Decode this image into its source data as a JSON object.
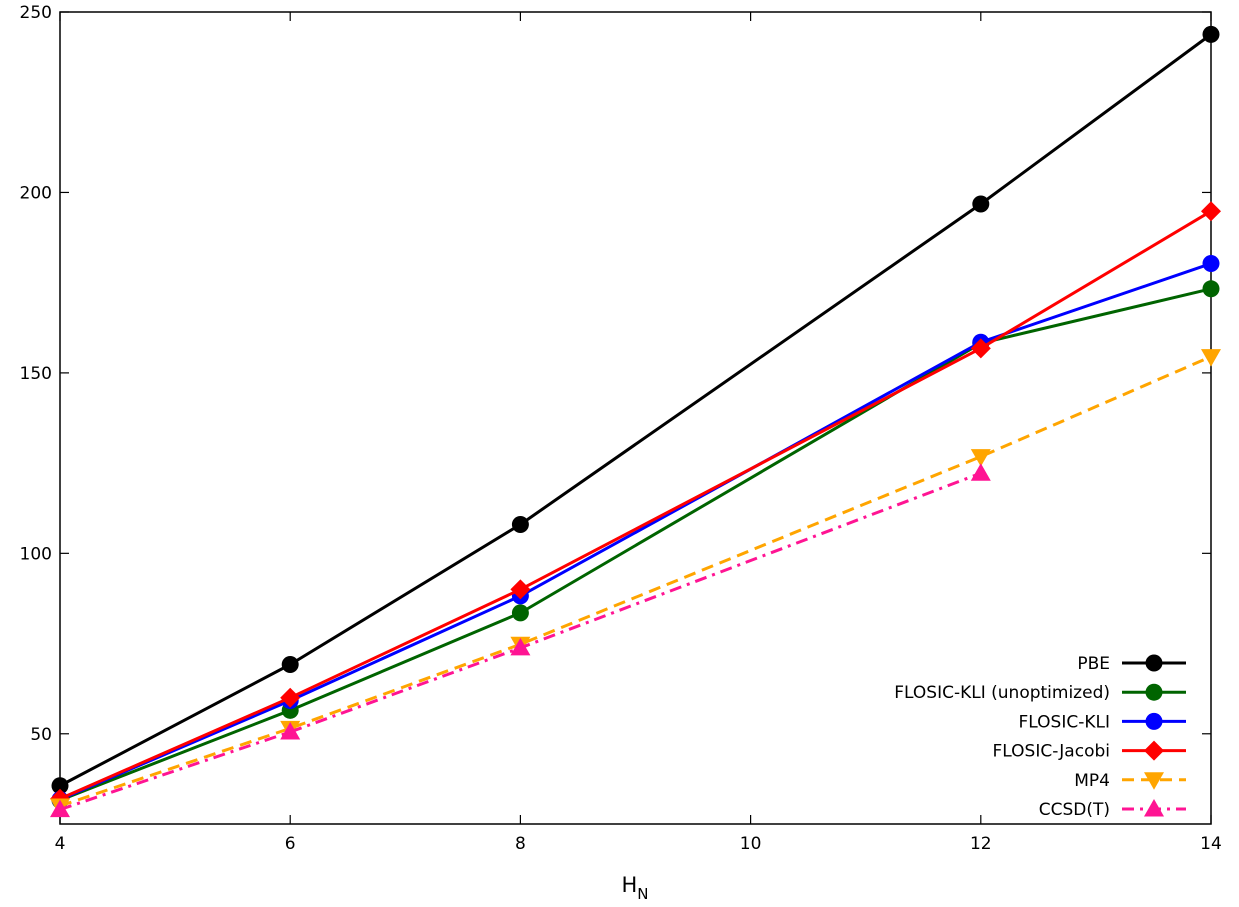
{
  "chart_data": {
    "type": "line",
    "title": "",
    "xlabel": "H",
    "xlabel_subscript": "N",
    "ylabel": "",
    "xlim": [
      4,
      14
    ],
    "ylim": [
      25,
      250
    ],
    "xticks": [
      4,
      6,
      8,
      10,
      12,
      14
    ],
    "yticks": [
      50,
      100,
      150,
      200,
      250
    ],
    "grid": false,
    "legend_position": "bottom-right",
    "series": [
      {
        "name": "PBE",
        "color": "#000000",
        "dash": "solid",
        "marker": "circle",
        "x": [
          4,
          6,
          8,
          12,
          14
        ],
        "y": [
          35.6,
          69.2,
          108.0,
          196.8,
          243.8
        ]
      },
      {
        "name": "FLOSIC-KLI (unoptimized)",
        "color": "#006400",
        "dash": "solid",
        "marker": "circle",
        "x": [
          4,
          6,
          8,
          12,
          14
        ],
        "y": [
          31.6,
          56.5,
          83.5,
          158.2,
          173.3
        ]
      },
      {
        "name": "FLOSIC-KLI",
        "color": "#0000ff",
        "dash": "solid",
        "marker": "circle",
        "x": [
          4,
          6,
          8,
          12,
          14
        ],
        "y": [
          31.8,
          59.2,
          88.2,
          158.5,
          180.3
        ]
      },
      {
        "name": "FLOSIC-Jacobi",
        "color": "#ff0000",
        "dash": "solid",
        "marker": "diamond",
        "x": [
          4,
          6,
          8,
          12,
          14
        ],
        "y": [
          32.0,
          60.0,
          90.0,
          156.8,
          194.8
        ]
      },
      {
        "name": "MP4",
        "color": "#ffa500",
        "dash": "dashed",
        "marker": "triangle-down",
        "x": [
          4,
          6,
          8,
          12,
          14
        ],
        "y": [
          30.0,
          51.5,
          74.8,
          126.8,
          154.5
        ]
      },
      {
        "name": "CCSD(T)",
        "color": "#ff1493",
        "dash": "dashdot",
        "marker": "triangle-up",
        "x": [
          4,
          6,
          8,
          12
        ],
        "y": [
          29.0,
          50.5,
          73.8,
          122.2
        ]
      }
    ]
  }
}
